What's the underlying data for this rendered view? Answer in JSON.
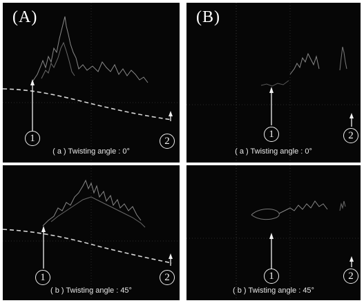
{
  "panels": [
    {
      "label": "(A)",
      "subfigures": [
        {
          "caption": "( a ) Twisting  angle : 0°",
          "marker_1": "1",
          "marker_2": "2"
        },
        {
          "caption": "( b ) Twisting  angle : 45°",
          "marker_1": "1",
          "marker_2": "2"
        }
      ]
    },
    {
      "label": "(B)",
      "subfigures": [
        {
          "caption": "( a ) Twisting angle : 0°",
          "marker_1": "1",
          "marker_2": "2"
        },
        {
          "caption": "( b ) Twisting angle : 45°",
          "marker_1": "1",
          "marker_2": "2"
        }
      ]
    }
  ],
  "colors": {
    "background": "#060606",
    "dashed_line": "#d8d8d8",
    "signal": "#8a8a8a",
    "arrow": "#f0f0f0"
  }
}
